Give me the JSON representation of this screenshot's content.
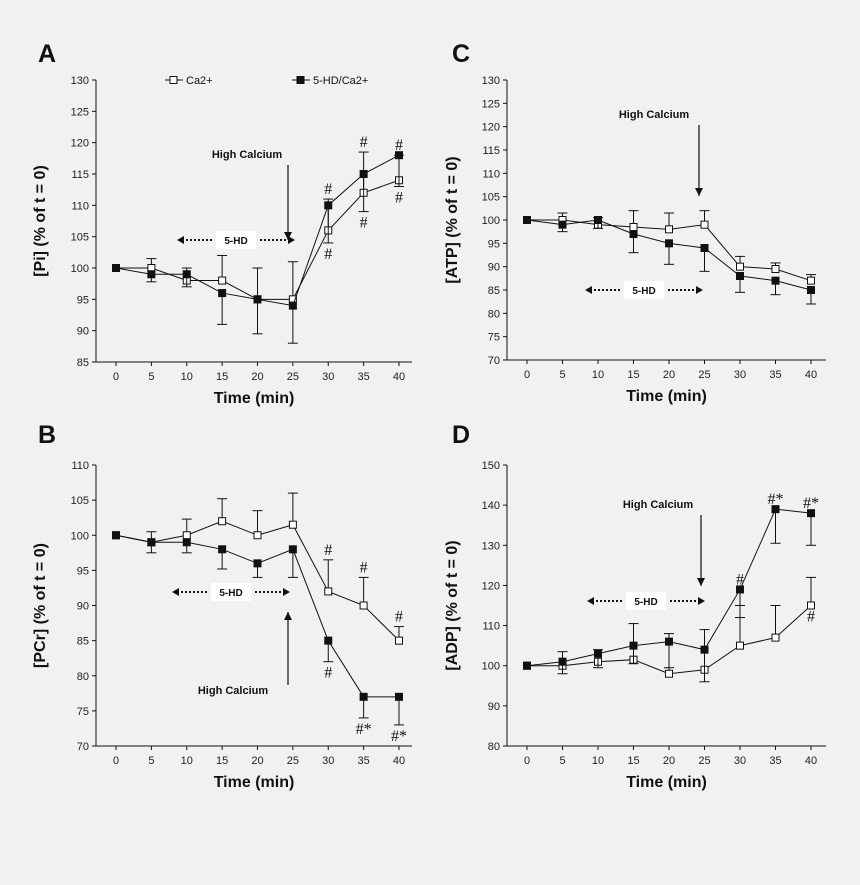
{
  "legend": {
    "open_label": "Ca2+",
    "filled_label": "5-HD/Ca2+"
  },
  "chart_data": [
    {
      "id": "A",
      "type": "line",
      "panel_label": "A",
      "xlabel": "Time (min)",
      "ylabel": "[Pi] (% of t = 0)",
      "x": [
        0,
        5,
        10,
        15,
        20,
        25,
        30,
        35,
        40
      ],
      "xticks": [
        0,
        5,
        10,
        15,
        20,
        25,
        30,
        35,
        40
      ],
      "ylim": [
        85,
        130
      ],
      "yticks": [
        85,
        90,
        95,
        100,
        105,
        110,
        115,
        120,
        125,
        130
      ],
      "series": [
        {
          "name": "Ca2+",
          "marker": "open",
          "values": [
            100,
            100,
            98,
            98,
            95,
            95,
            106,
            112,
            114
          ],
          "errors": [
            0,
            1.5,
            2,
            4,
            5,
            6,
            5,
            6.5,
            4
          ]
        },
        {
          "name": "5-HD/Ca2+",
          "marker": "filled",
          "values": [
            100,
            99,
            99,
            96,
            95,
            94,
            110,
            115,
            118
          ],
          "errors": [
            0,
            1.2,
            2,
            5,
            5.5,
            6,
            6,
            6,
            5
          ]
        }
      ],
      "annotations": {
        "stimulus": "High Calcium",
        "drug": "5-HD",
        "sig_above": [
          {
            "x": 30,
            "text": "#"
          },
          {
            "x": 35,
            "text": "#"
          },
          {
            "x": 40,
            "text": "#"
          }
        ],
        "sig_below": [
          {
            "x": 30,
            "text": "#"
          },
          {
            "x": 35,
            "text": "#"
          },
          {
            "x": 40,
            "text": "#"
          }
        ]
      }
    },
    {
      "id": "B",
      "type": "line",
      "panel_label": "B",
      "xlabel": "Time (min)",
      "ylabel": "[PCr] (% of t = 0)",
      "x": [
        0,
        5,
        10,
        15,
        20,
        25,
        30,
        35,
        40
      ],
      "xticks": [
        0,
        5,
        10,
        15,
        20,
        25,
        30,
        35,
        40
      ],
      "ylim": [
        70,
        110
      ],
      "yticks": [
        70,
        75,
        80,
        85,
        90,
        95,
        100,
        105,
        110
      ],
      "series": [
        {
          "name": "Ca2+",
          "marker": "open",
          "values": [
            100,
            99,
            100,
            102,
            100,
            101.5,
            92,
            90,
            85
          ],
          "errors": [
            0,
            1.5,
            2.3,
            3.2,
            3.5,
            4.5,
            4.5,
            4,
            2
          ]
        },
        {
          "name": "5-HD/Ca2+",
          "marker": "filled",
          "values": [
            100,
            99,
            99,
            98,
            96,
            98,
            85,
            77,
            77
          ],
          "errors": [
            0,
            1.5,
            1.5,
            2.8,
            2,
            4,
            3,
            3,
            4
          ]
        }
      ],
      "annotations": {
        "stimulus": "High Calcium",
        "drug": "5-HD",
        "sig_above": [
          {
            "x": 30,
            "text": "#"
          },
          {
            "x": 35,
            "text": "#"
          },
          {
            "x": 40,
            "text": "#"
          }
        ],
        "sig_below": [
          {
            "x": 30,
            "text": "#"
          },
          {
            "x": 35,
            "text": "#*"
          },
          {
            "x": 40,
            "text": "#*"
          }
        ]
      }
    },
    {
      "id": "C",
      "type": "line",
      "panel_label": "C",
      "xlabel": "Time (min)",
      "ylabel": "[ATP] (% of t = 0)",
      "x": [
        0,
        5,
        10,
        15,
        20,
        25,
        30,
        35,
        40
      ],
      "xticks": [
        0,
        5,
        10,
        15,
        20,
        25,
        30,
        35,
        40
      ],
      "ylim": [
        70,
        130
      ],
      "yticks": [
        70,
        75,
        80,
        85,
        90,
        95,
        100,
        105,
        110,
        115,
        120,
        125,
        130
      ],
      "series": [
        {
          "name": "Ca2+",
          "marker": "open",
          "values": [
            100,
            100,
            99,
            98.5,
            98,
            99,
            90,
            89.5,
            87
          ],
          "errors": [
            0,
            1.5,
            1.5,
            3.5,
            3.5,
            3,
            2.2,
            1.3,
            1.3
          ]
        },
        {
          "name": "5-HD/Ca2+",
          "marker": "filled",
          "values": [
            100,
            99,
            100,
            97,
            95,
            94,
            88,
            87,
            85
          ],
          "errors": [
            0,
            1.5,
            1.8,
            4,
            4.5,
            5,
            3.5,
            3,
            3
          ]
        }
      ],
      "annotations": {
        "stimulus": "High Calcium",
        "drug": "5-HD"
      }
    },
    {
      "id": "D",
      "type": "line",
      "panel_label": "D",
      "xlabel": "Time (min)",
      "ylabel": "[ADP] (% of t = 0)",
      "x": [
        0,
        5,
        10,
        15,
        20,
        25,
        30,
        35,
        40
      ],
      "xticks": [
        0,
        5,
        10,
        15,
        20,
        25,
        30,
        35,
        40
      ],
      "ylim": [
        80,
        150
      ],
      "yticks": [
        80,
        90,
        100,
        110,
        120,
        130,
        140,
        150
      ],
      "series": [
        {
          "name": "Ca2+",
          "marker": "open",
          "values": [
            100,
            100,
            101,
            101.5,
            98,
            99,
            105,
            107,
            115
          ],
          "errors": [
            0,
            3.5,
            3,
            9,
            10,
            10,
            10,
            8,
            7
          ]
        },
        {
          "name": "5-HD/Ca2+",
          "marker": "filled",
          "values": [
            100,
            101,
            103,
            105,
            106,
            104,
            119,
            139,
            138
          ],
          "errors": [
            0,
            3,
            3.5,
            4.5,
            6.5,
            8,
            7,
            8.5,
            8
          ]
        }
      ],
      "annotations": {
        "stimulus": "High Calcium",
        "drug": "5-HD",
        "sig_above": [
          {
            "x": 30,
            "text": "#"
          },
          {
            "x": 35,
            "text": "#*"
          },
          {
            "x": 40,
            "text": "#*"
          }
        ],
        "sig_below": [
          {
            "x": 40,
            "text": "#"
          }
        ]
      }
    }
  ]
}
